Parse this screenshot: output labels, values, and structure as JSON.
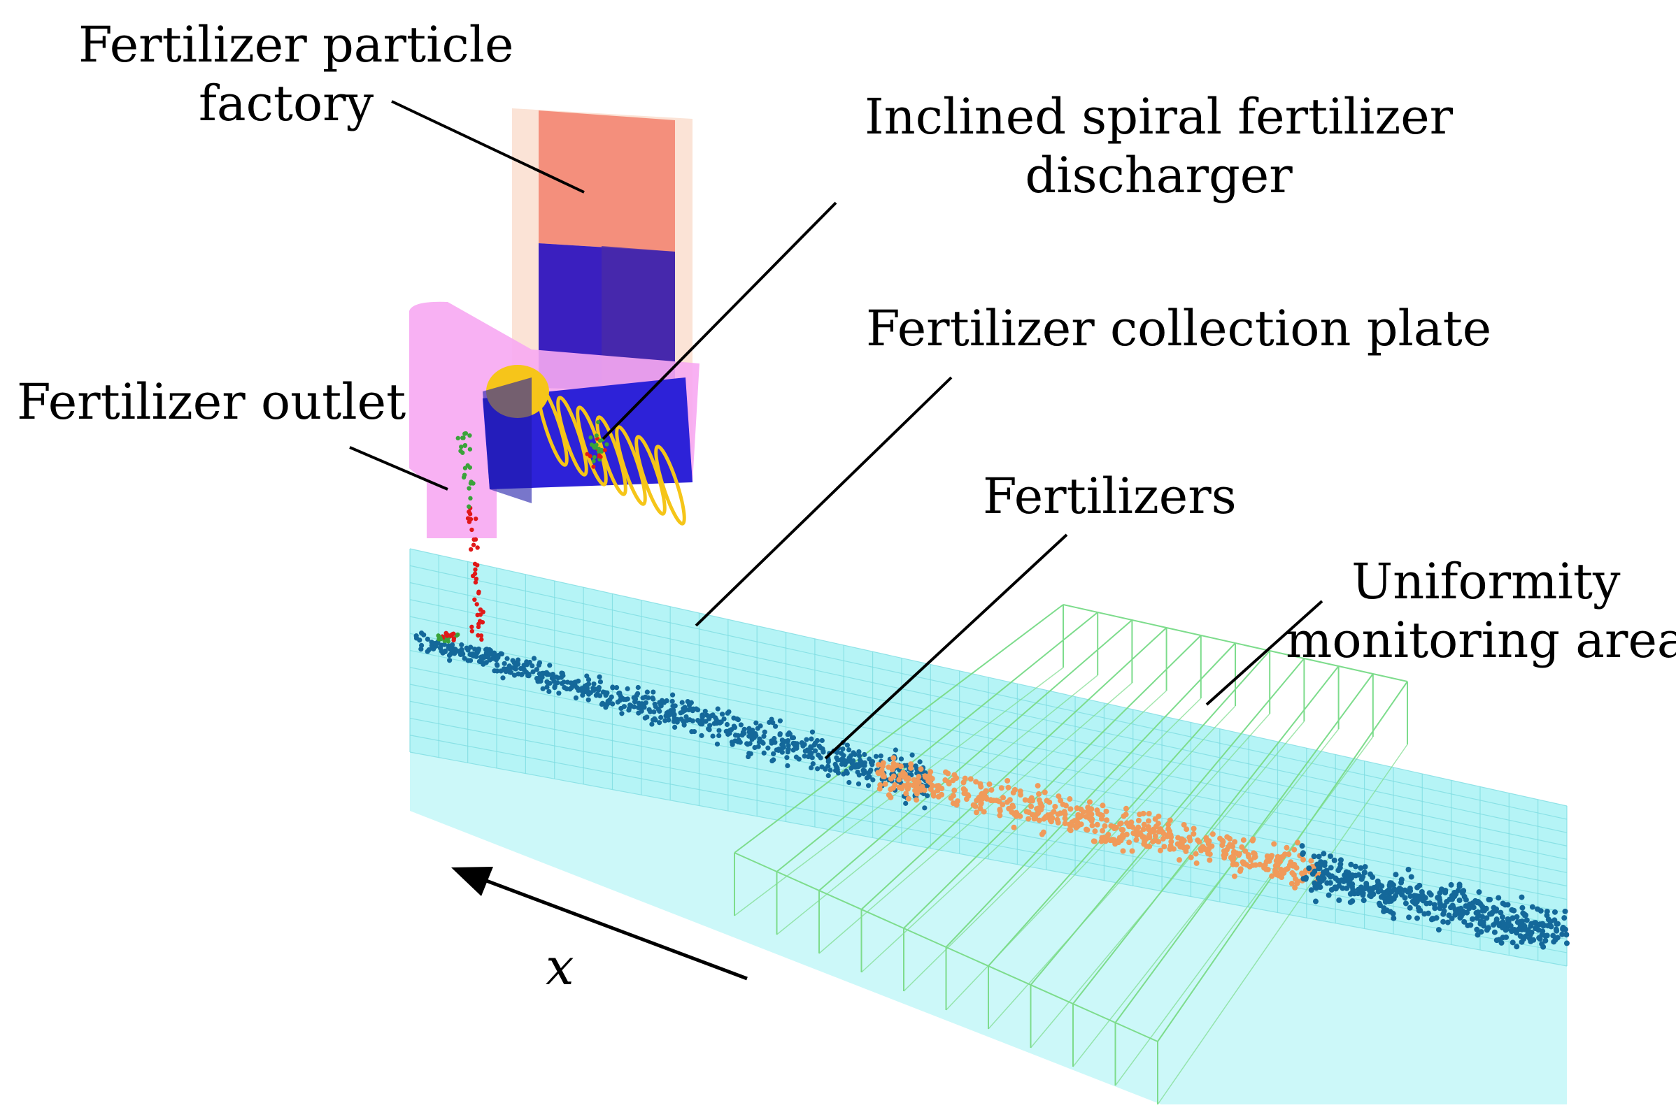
{
  "labels": {
    "particle_factory": [
      "Fertilizer particle",
      "factory"
    ],
    "discharger": [
      "Inclined spiral fertilizer",
      "discharger"
    ],
    "collection_plate": "Fertilizer collection plate",
    "outlet": "Fertilizer outlet",
    "fertilizers": "Fertilizers",
    "monitoring_area": [
      "Uniformity",
      "monitoring area"
    ],
    "axis": "x"
  },
  "colors": {
    "factory": "#f28c78",
    "hopper_fill": "#3b22b8",
    "discharger_housing": "#f59bf0",
    "screw": "#f5c518",
    "plate": "#9ff0f2",
    "plate_grid": "#7fdde2",
    "monitoring_box": "#7ddc8c",
    "particle_blue": "#14689a",
    "particle_orange": "#f09a5a",
    "particle_red": "#e01818",
    "particle_green": "#3aa33a"
  }
}
